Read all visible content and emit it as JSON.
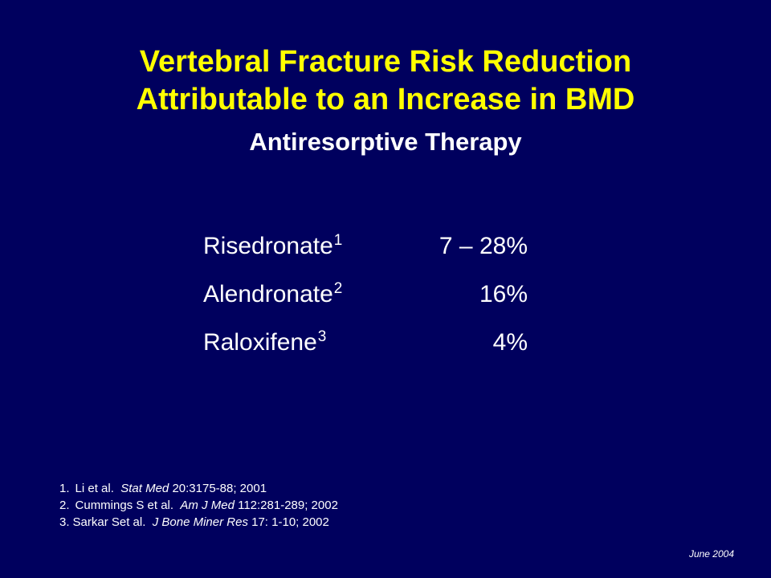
{
  "slide": {
    "title_line1": "Vertebral Fracture Risk Reduction",
    "title_line2": "Attributable to an Increase in BMD",
    "subtitle": "Antiresorptive Therapy",
    "rows": [
      {
        "drug": "Risedronate",
        "ref": "1",
        "value": "7 – 28%"
      },
      {
        "drug": "Alendronate",
        "ref": "2",
        "value": "16%"
      },
      {
        "drug": "Raloxifene",
        "ref": "3",
        "value": "4%"
      }
    ],
    "references": [
      {
        "num": "1.",
        "authors": "Li et al.",
        "journal": "Stat Med",
        "details": "20:3175-88; 2001"
      },
      {
        "num": "2.",
        "authors": "Cummings S et al.",
        "journal": "Am J Med",
        "details": "112:281-289; 2002"
      },
      {
        "num": "3.",
        "authors": "Sarkar Set al.",
        "journal": "J Bone Miner Res",
        "details": "17: 1-10; 2002"
      }
    ],
    "date": "June 2004",
    "colors": {
      "background": "#00005e",
      "title": "#ffff00",
      "text": "#ffffff"
    }
  }
}
